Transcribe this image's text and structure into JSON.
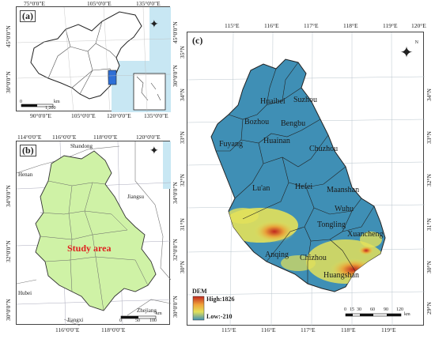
{
  "panel_a": {
    "label": "(a)",
    "top_ticks": [
      "75°0'0\"E",
      "105°0'0\"E",
      "135°0'0\"E"
    ],
    "bottom_ticks": [
      "90°0'0\"E",
      "105°0'0\"E",
      "120°0'0\"E",
      "135°0'0\"E"
    ],
    "left_ticks": [
      "45°0'0\"N",
      "30°0'0\"N"
    ],
    "right_ticks": [
      "45°0'0\"N",
      "30°0'0\"N"
    ],
    "scale": {
      "zero": "0",
      "unit": "km",
      "max": "1,200"
    },
    "highlight_color": "#2e6fd6"
  },
  "panel_b": {
    "label": "(b)",
    "top_ticks": [
      "114°0'0\"E",
      "116°0'0\"E",
      "118°0'0\"E",
      "120°0'0\"E"
    ],
    "bottom_ticks": [
      "116°0'0\"E",
      "118°0'0\"E"
    ],
    "left_ticks": [
      "34°0'0\"N",
      "32°0'0\"N",
      "30°0'0\"N"
    ],
    "right_ticks": [
      "34°0'0\"N",
      "32°0'0\"N",
      "30°0'0\"N"
    ],
    "neighbors": [
      "Shandong",
      "Henan",
      "Jiangsu",
      "Hubei",
      "Zhejiang",
      "Jiangxi"
    ],
    "study_area": "Study area",
    "study_color": "#cff2a6",
    "scale": {
      "zero": "0",
      "unit": "km",
      "mid": "50",
      "max": "100"
    }
  },
  "panel_c": {
    "label": "(c)",
    "top_ticks": [
      "115°E",
      "116°E",
      "117°E",
      "118°E",
      "119°E",
      "120°E"
    ],
    "bottom_ticks": [
      "115°E",
      "116°E",
      "117°E",
      "118°E",
      "119°E"
    ],
    "left_ticks": [
      "35°N",
      "34°N",
      "33°N",
      "32°N",
      "31°N",
      "30°N"
    ],
    "right_ticks": [
      "34°N",
      "33°N",
      "32°N",
      "31°N",
      "30°N",
      "29°N"
    ],
    "cities": [
      "Huaibei",
      "Suzhou",
      "Bozhou",
      "Bengbu",
      "Fuyang",
      "Huainan",
      "Chuzhou",
      "Lu'an",
      "Hefei",
      "Maanshan",
      "Wuhu",
      "Tongling",
      "Xuancheng",
      "Anqing",
      "Chizhou",
      "Huangshan"
    ],
    "legend": {
      "title": "DEM",
      "high": "High:1826",
      "low": "Low:-210"
    },
    "scale": {
      "labels": [
        "0",
        "15",
        "30",
        "60",
        "90",
        "120"
      ],
      "unit": "km"
    },
    "colors": {
      "low": "#3f8fb5",
      "mid": "#e3e15a",
      "high": "#c0271e"
    }
  },
  "north_label": "N"
}
